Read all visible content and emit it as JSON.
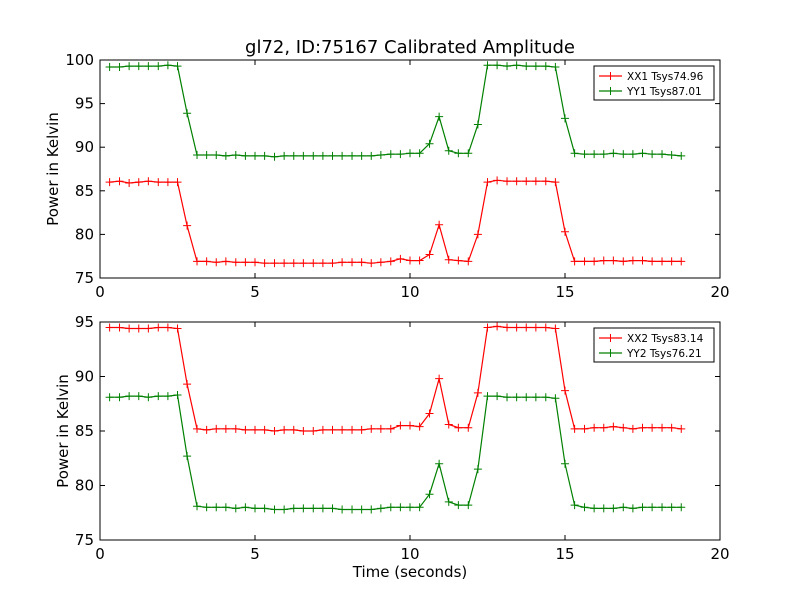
{
  "figure": {
    "title": "gl72, ID:75167 Calibrated Amplitude",
    "xlabel": "Time (seconds)"
  },
  "chart_data": [
    {
      "type": "line",
      "title": "gl72, ID:75167 Calibrated Amplitude",
      "xlabel": "",
      "ylabel": "Power in Kelvin",
      "xlim": [
        0,
        20
      ],
      "ylim": [
        75,
        100
      ],
      "xticks": [
        0,
        5,
        10,
        15,
        20
      ],
      "yticks": [
        75,
        80,
        85,
        90,
        95,
        100
      ],
      "grid": false,
      "legend_position": "top-right",
      "x": [
        0.31,
        0.63,
        0.94,
        1.25,
        1.56,
        1.88,
        2.19,
        2.5,
        2.81,
        3.13,
        3.44,
        3.75,
        4.06,
        4.38,
        4.69,
        5.0,
        5.31,
        5.63,
        5.94,
        6.25,
        6.56,
        6.88,
        7.19,
        7.5,
        7.81,
        8.13,
        8.44,
        8.75,
        9.06,
        9.38,
        9.69,
        10.0,
        10.31,
        10.63,
        10.94,
        11.25,
        11.56,
        11.88,
        12.19,
        12.5,
        12.81,
        13.13,
        13.44,
        13.75,
        14.06,
        14.38,
        14.69,
        15.0,
        15.31,
        15.63,
        15.94,
        16.25,
        16.56,
        16.88,
        17.19,
        17.5,
        17.81,
        18.13,
        18.44,
        18.75
      ],
      "series": [
        {
          "name": "XX1 Tsys74.96",
          "color": "#ff0000",
          "values": [
            86.0,
            86.1,
            85.9,
            86.0,
            86.1,
            86.0,
            86.0,
            86.0,
            81.0,
            76.9,
            76.9,
            76.8,
            76.9,
            76.8,
            76.8,
            76.8,
            76.7,
            76.7,
            76.7,
            76.7,
            76.7,
            76.7,
            76.7,
            76.7,
            76.8,
            76.8,
            76.8,
            76.7,
            76.8,
            76.9,
            77.2,
            77.0,
            77.0,
            77.7,
            81.1,
            77.1,
            77.0,
            76.9,
            80.0,
            86.0,
            86.2,
            86.1,
            86.1,
            86.1,
            86.1,
            86.1,
            86.0,
            80.3,
            76.9,
            76.9,
            76.9,
            77.0,
            77.0,
            76.9,
            77.0,
            77.0,
            76.9,
            76.9,
            76.9,
            76.9
          ]
        },
        {
          "name": "YY1 Tsys87.01",
          "color": "#008000",
          "values": [
            99.2,
            99.2,
            99.3,
            99.3,
            99.3,
            99.3,
            99.4,
            99.3,
            93.9,
            89.1,
            89.1,
            89.1,
            89.0,
            89.1,
            89.0,
            89.0,
            89.0,
            88.9,
            89.0,
            89.0,
            89.0,
            89.0,
            89.0,
            89.0,
            89.0,
            89.0,
            89.0,
            89.0,
            89.1,
            89.2,
            89.2,
            89.3,
            89.3,
            90.4,
            93.5,
            89.6,
            89.3,
            89.3,
            92.6,
            99.4,
            99.4,
            99.3,
            99.4,
            99.3,
            99.3,
            99.3,
            99.2,
            93.3,
            89.3,
            89.2,
            89.2,
            89.2,
            89.3,
            89.2,
            89.2,
            89.3,
            89.2,
            89.2,
            89.1,
            89.0
          ]
        }
      ]
    },
    {
      "type": "line",
      "title": "",
      "xlabel": "Time (seconds)",
      "ylabel": "Power in Kelvin",
      "xlim": [
        0,
        20
      ],
      "ylim": [
        75,
        95
      ],
      "xticks": [
        0,
        5,
        10,
        15,
        20
      ],
      "yticks": [
        75,
        80,
        85,
        90,
        95
      ],
      "grid": false,
      "legend_position": "top-right",
      "x": [
        0.31,
        0.63,
        0.94,
        1.25,
        1.56,
        1.88,
        2.19,
        2.5,
        2.81,
        3.13,
        3.44,
        3.75,
        4.06,
        4.38,
        4.69,
        5.0,
        5.31,
        5.63,
        5.94,
        6.25,
        6.56,
        6.88,
        7.19,
        7.5,
        7.81,
        8.13,
        8.44,
        8.75,
        9.06,
        9.38,
        9.69,
        10.0,
        10.31,
        10.63,
        10.94,
        11.25,
        11.56,
        11.88,
        12.19,
        12.5,
        12.81,
        13.13,
        13.44,
        13.75,
        14.06,
        14.38,
        14.69,
        15.0,
        15.31,
        15.63,
        15.94,
        16.25,
        16.56,
        16.88,
        17.19,
        17.5,
        17.81,
        18.13,
        18.44,
        18.75
      ],
      "series": [
        {
          "name": "XX2 Tsys83.14",
          "color": "#ff0000",
          "values": [
            94.5,
            94.5,
            94.4,
            94.4,
            94.4,
            94.5,
            94.5,
            94.4,
            89.3,
            85.2,
            85.1,
            85.2,
            85.2,
            85.2,
            85.1,
            85.1,
            85.1,
            85.0,
            85.1,
            85.1,
            85.0,
            85.0,
            85.1,
            85.1,
            85.1,
            85.1,
            85.1,
            85.2,
            85.2,
            85.2,
            85.5,
            85.5,
            85.4,
            86.6,
            89.8,
            85.6,
            85.3,
            85.3,
            88.5,
            94.5,
            94.6,
            94.5,
            94.5,
            94.5,
            94.5,
            94.5,
            94.4,
            88.7,
            85.2,
            85.2,
            85.3,
            85.3,
            85.4,
            85.3,
            85.2,
            85.3,
            85.3,
            85.3,
            85.3,
            85.2
          ]
        },
        {
          "name": "YY2 Tsys76.21",
          "color": "#008000",
          "values": [
            88.1,
            88.1,
            88.2,
            88.2,
            88.1,
            88.2,
            88.2,
            88.3,
            82.7,
            78.1,
            78.0,
            78.0,
            78.0,
            77.9,
            78.0,
            77.9,
            77.9,
            77.8,
            77.8,
            77.9,
            77.9,
            77.9,
            77.9,
            77.9,
            77.8,
            77.8,
            77.8,
            77.8,
            77.9,
            78.0,
            78.0,
            78.0,
            78.0,
            79.2,
            82.0,
            78.5,
            78.2,
            78.2,
            81.5,
            88.2,
            88.2,
            88.1,
            88.1,
            88.1,
            88.1,
            88.1,
            88.0,
            82.0,
            78.2,
            78.0,
            77.9,
            77.9,
            77.9,
            78.0,
            77.9,
            78.0,
            78.0,
            78.0,
            78.0,
            78.0
          ]
        }
      ]
    }
  ]
}
